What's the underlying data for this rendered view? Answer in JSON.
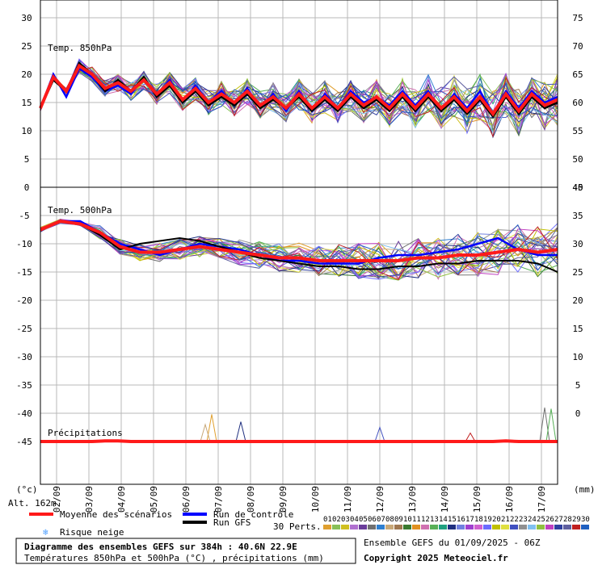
{
  "chart_data": {
    "type": "line",
    "title": "Diagramme des ensembles GEFS sur 384h : 40.6N 22.9E",
    "subtitle": "Températures 850hPa et 500hPa (°C) , précipitations (mm)",
    "run_info": "Ensemble GEFS du 01/09/2025 - 06Z",
    "copyright": "Copyright 2025 Meteociel.fr",
    "altitude": "Alt. 162m",
    "left_unit": "(°c)",
    "right_unit": "(mm)",
    "dates": [
      "02/09",
      "03/09",
      "04/09",
      "05/09",
      "06/09",
      "07/09",
      "08/09",
      "09/09",
      "10/09",
      "11/09",
      "12/09",
      "13/09",
      "14/09",
      "15/09",
      "16/09",
      "17/09"
    ],
    "panels": {
      "t850": {
        "label": "Temp. 850hPa",
        "left_ticks": [
          "30",
          "25",
          "20",
          "15",
          "10",
          "5",
          "0"
        ],
        "right_ticks": [
          "75",
          "70",
          "65",
          "60",
          "55",
          "50",
          "45"
        ],
        "mean": [
          14,
          19.5,
          17,
          21.5,
          20,
          17.5,
          18.5,
          17,
          19,
          16.5,
          18.5,
          15.5,
          17.5,
          15,
          16.5,
          15,
          17,
          14.5,
          16,
          14,
          16.5,
          14,
          16,
          14,
          16.5,
          14.5,
          16,
          14,
          16.5,
          14,
          16.5,
          14,
          16,
          13.5,
          16,
          13,
          16.5,
          13.5,
          16.5,
          14.5,
          15.5
        ],
        "control": [
          14,
          20,
          16,
          21,
          19.5,
          17,
          18,
          16.5,
          19.5,
          16,
          19,
          15,
          18,
          15,
          17,
          14.5,
          17.5,
          14,
          16.5,
          13.5,
          17,
          13.5,
          16.5,
          14,
          17,
          15,
          16,
          14.5,
          17,
          14.5,
          17,
          13.5,
          16.5,
          14,
          17,
          13,
          17,
          14,
          17,
          15,
          16
        ],
        "gfs": [
          14,
          19,
          17,
          22,
          20,
          17,
          19,
          17,
          19.5,
          16,
          18,
          15,
          17,
          14.5,
          16,
          14.5,
          16.5,
          14,
          15.5,
          14,
          16,
          13.5,
          15.5,
          13.5,
          16,
          14,
          15.5,
          13.5,
          16,
          13.5,
          16,
          13.5,
          15.5,
          13,
          15.5,
          12.5,
          16,
          13,
          16,
          14,
          15
        ]
      },
      "t500": {
        "label": "Temp. 500hPa",
        "left_ticks": [
          "-5",
          "-10",
          "-15",
          "-20",
          "-25",
          "-30",
          "-35",
          "-40",
          "-45"
        ],
        "right_ticks": [
          "40",
          "35",
          "30",
          "25",
          "20",
          "15",
          "10",
          "5",
          "0"
        ],
        "mean": [
          -7.5,
          -6,
          -6.5,
          -8,
          -10.5,
          -11.5,
          -11.5,
          -11,
          -10.5,
          -11,
          -11.5,
          -12,
          -12.5,
          -12.5,
          -13,
          -13,
          -13,
          -13,
          -13,
          -12.5,
          -12.5,
          -12,
          -12,
          -11.5,
          -11,
          -11.5,
          -11
        ],
        "control": [
          -7.5,
          -6,
          -6,
          -8,
          -10,
          -11,
          -12,
          -11,
          -10,
          -10.5,
          -11,
          -12,
          -13,
          -13,
          -13.5,
          -13.5,
          -13.5,
          -12.5,
          -12,
          -12,
          -11.5,
          -11,
          -10,
          -9,
          -11,
          -12,
          -12
        ],
        "gfs": [
          -7.5,
          -6,
          -6.5,
          -8.5,
          -11,
          -10,
          -9.5,
          -9,
          -9.5,
          -10.5,
          -11.5,
          -12.5,
          -13,
          -13.5,
          -14,
          -14,
          -14.5,
          -14.5,
          -14,
          -14,
          -13.5,
          -13.5,
          -13,
          -13,
          -13,
          -13.5,
          -15
        ]
      },
      "precip": {
        "label": "Précipitations",
        "right_ticks": [
          "5",
          "0"
        ],
        "mean": [
          0,
          0,
          0,
          0,
          0,
          0.1,
          0.1,
          0,
          0,
          0,
          0,
          0,
          0,
          0,
          0,
          0,
          0,
          0,
          0,
          0,
          0,
          0,
          0,
          0,
          0,
          0,
          0,
          0,
          0,
          0,
          0,
          0,
          0,
          0,
          0,
          0,
          0.1,
          0,
          0,
          0,
          0
        ],
        "spikes": [
          {
            "day": 5.3,
            "mm": 4.8
          },
          {
            "day": 5.1,
            "mm": 3
          },
          {
            "day": 6.2,
            "mm": 3.5
          },
          {
            "day": 10.5,
            "mm": 2.5
          },
          {
            "day": 13.3,
            "mm": 1.5
          },
          {
            "day": 15.6,
            "mm": 6
          },
          {
            "day": 15.8,
            "mm": 5.8
          }
        ]
      }
    }
  },
  "legend": {
    "mean": "Moyenne des scénarios",
    "control": "Run de contrôle",
    "gfs": "Run GFS",
    "snow": "Risque neige",
    "perts": "30 Perts.",
    "pert_numbers": [
      "01",
      "02",
      "03",
      "04",
      "05",
      "06",
      "07",
      "08",
      "09",
      "10",
      "11",
      "12",
      "13",
      "14",
      "15",
      "16",
      "17",
      "18",
      "19",
      "20",
      "21",
      "22",
      "23",
      "24",
      "25",
      "26",
      "27",
      "28",
      "29",
      "30"
    ],
    "pert_colors": [
      "#e0a030",
      "#88c058",
      "#d0c020",
      "#b070d0",
      "#6a3d9a",
      "#707070",
      "#2f7fd0",
      "#c8a878",
      "#a07850",
      "#3a7a30",
      "#e09020",
      "#d070b0",
      "#58b058",
      "#20a080",
      "#203080",
      "#7080e0",
      "#a040d0",
      "#d060d0",
      "#6c6cff",
      "#c0c000",
      "#e0e040",
      "#4050c0",
      "#909090",
      "#80c0f0",
      "#90c040",
      "#c040c0",
      "#3040a0",
      "#6060a0",
      "#c02020",
      "#2060c0"
    ]
  },
  "colors": {
    "mean": "#ff1a1a",
    "control": "#0000ff",
    "gfs": "#000000",
    "grid": "#b8b8b8",
    "snow": "#4fa0ff"
  }
}
